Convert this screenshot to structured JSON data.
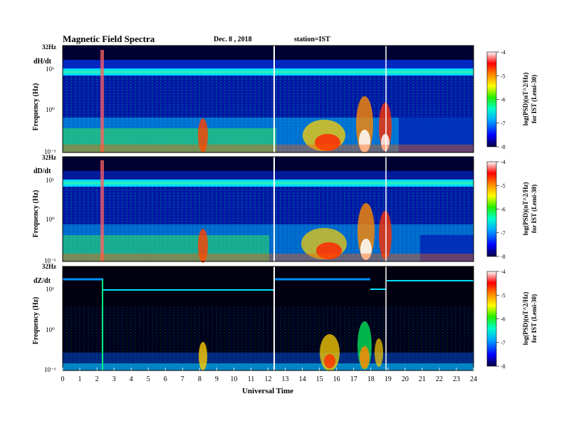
{
  "header": {
    "title": "Magnetic  Field  Spectra",
    "date": "Dec. 8  , 2018",
    "station": "station=IST"
  },
  "chart_data": {
    "type": "heatmap",
    "title": "Magnetic  Field  Spectra",
    "xlabel": "Universal  Time",
    "xlim": [
      0,
      24
    ],
    "x_ticks": [
      "0",
      "1",
      "2",
      "3",
      "4",
      "5",
      "6",
      "7",
      "8",
      "9",
      "10",
      "11",
      "12",
      "13",
      "14",
      "15",
      "16",
      "17",
      "18",
      "19",
      "20",
      "21",
      "22",
      "23",
      "24"
    ],
    "y_scale": "log",
    "ylim": [
      0.1,
      32
    ],
    "data_gaps_ut": [
      12.45,
      18.95
    ],
    "panels": [
      {
        "component": "dH/dt",
        "ylabel": "Frequency  (Hz)",
        "y_top_label": "32Hz",
        "y_ticks": [
          "10¹",
          "10⁰",
          "10⁻¹"
        ],
        "noise_line_hz": 7.5,
        "activity_bursts_ut": [
          2.3,
          8.2,
          15.5,
          16.3,
          17.6,
          18.0,
          18.3
        ]
      },
      {
        "component": "dD/dt",
        "ylabel": "Frequency  (Hz)",
        "y_top_label": "32Hz",
        "y_ticks": [
          "10¹",
          "10⁰",
          "10⁻¹"
        ],
        "noise_line_hz": 7.5,
        "activity_bursts_ut": [
          2.3,
          8.2,
          15.5,
          16.3,
          17.6,
          18.0,
          18.3
        ]
      },
      {
        "component": "dZ/dt",
        "ylabel": "Frequency  (Hz)",
        "y_top_label": "32Hz",
        "y_ticks": [
          "10¹",
          "10⁰",
          "10⁻¹"
        ],
        "noise_line_hz": 10,
        "activity_bursts_ut": [
          8.2,
          15.6,
          16.2,
          17.6,
          18.1
        ]
      }
    ],
    "colorbar": {
      "label_line1": "log(PSD)(nT^2/Hz)",
      "label_line2": "for IST (Lemi-30)",
      "range": [
        -8,
        -4
      ],
      "ticks": [
        "-4",
        "-5",
        "-6",
        "-7",
        "-8"
      ]
    }
  }
}
